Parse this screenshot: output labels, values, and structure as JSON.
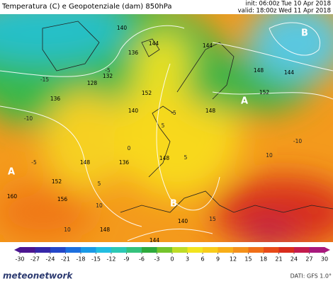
{
  "header": {
    "title": "Temperatura (C) e Geopotenziale (dam) 850hPa",
    "init": "init: 06:00z Tue 10 Apr 2018",
    "valid": "valid: 18:00z Wed 11 Apr 2018"
  },
  "map": {
    "pressure_centers": [
      "A",
      "B",
      "A",
      "B"
    ],
    "contour_labels": [
      "128",
      "132",
      "136",
      "136",
      "140",
      "144",
      "144",
      "144",
      "148",
      "148",
      "152",
      "152",
      "136",
      "140",
      "148",
      "148",
      "152",
      "156",
      "160",
      "140",
      "144",
      "148"
    ],
    "temperature_labels": [
      "-15",
      "-10",
      "-10",
      "-5",
      "-5",
      "-5",
      "0",
      "5",
      "5",
      "5",
      "10",
      "10",
      "10",
      "15"
    ]
  },
  "legend": {
    "ticks": [
      -30,
      -27,
      -24,
      -21,
      -18,
      -15,
      -12,
      -9,
      -6,
      -3,
      0,
      3,
      6,
      9,
      12,
      15,
      18,
      21,
      24,
      27,
      30
    ],
    "colors": [
      "#4b1590",
      "#3526a8",
      "#2447c8",
      "#1c6fde",
      "#1a9ae6",
      "#22bde0",
      "#2cc8b4",
      "#34c27c",
      "#2eaa3c",
      "#74c42c",
      "#bedc26",
      "#f2e41e",
      "#f8cc1a",
      "#f8ae18",
      "#f4901a",
      "#f06e18",
      "#e84a18",
      "#d82c1c",
      "#c41c4c",
      "#a8187c"
    ]
  },
  "footer": {
    "source": "DATI: GFS 1.0°",
    "brand": "meteonetwork"
  }
}
